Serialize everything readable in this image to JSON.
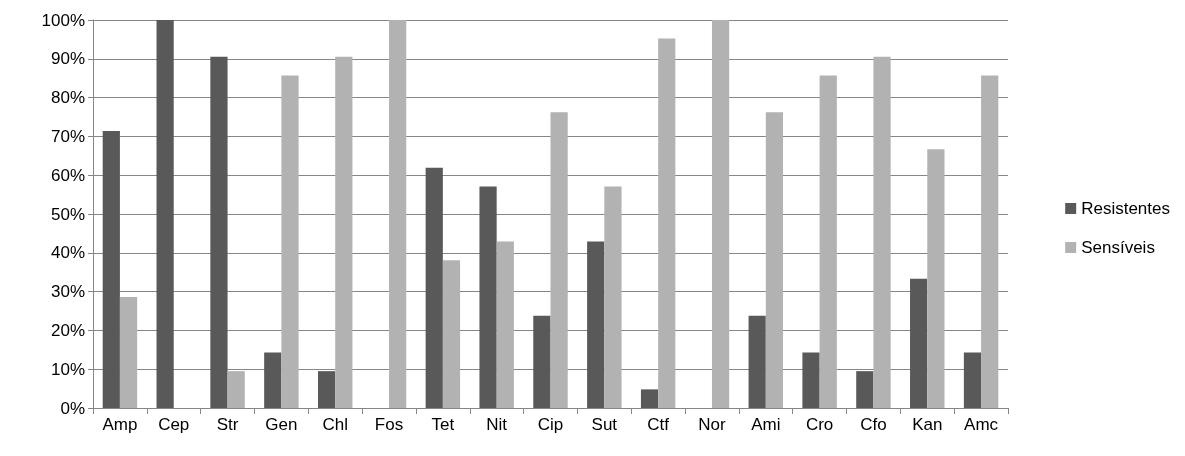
{
  "chart_data": {
    "type": "bar",
    "categories": [
      "Amp",
      "Cep",
      "Str",
      "Gen",
      "Chl",
      "Fos",
      "Tet",
      "Nit",
      "Cip",
      "Sut",
      "Ctf",
      "Nor",
      "Ami",
      "Cro",
      "Cfo",
      "Kan",
      "Amc"
    ],
    "series": [
      {
        "name": "Resistentes",
        "color": "#595959",
        "values": [
          71.4,
          100,
          90.5,
          14.3,
          9.5,
          0,
          61.9,
          57.1,
          23.8,
          42.9,
          4.8,
          0,
          23.8,
          14.3,
          9.5,
          33.3,
          14.3
        ]
      },
      {
        "name": "Sensíveis",
        "color": "#b2b2b2",
        "values": [
          28.6,
          0,
          9.5,
          85.7,
          90.5,
          100,
          38.1,
          42.9,
          76.2,
          57.1,
          95.2,
          100,
          76.2,
          85.7,
          90.5,
          66.7,
          85.7
        ]
      }
    ],
    "ylim": [
      0,
      100
    ],
    "yticks": [
      {
        "value": 0,
        "label": "0%"
      },
      {
        "value": 10,
        "label": "10%"
      },
      {
        "value": 20,
        "label": "20%"
      },
      {
        "value": 30,
        "label": "30%"
      },
      {
        "value": 40,
        "label": "40%"
      },
      {
        "value": 50,
        "label": "50%"
      },
      {
        "value": 60,
        "label": "60%"
      },
      {
        "value": 70,
        "label": "70%"
      },
      {
        "value": 80,
        "label": "80%"
      },
      {
        "value": 90,
        "label": "90%"
      },
      {
        "value": 100,
        "label": "100%"
      }
    ],
    "grid": "y",
    "legend": "right"
  }
}
